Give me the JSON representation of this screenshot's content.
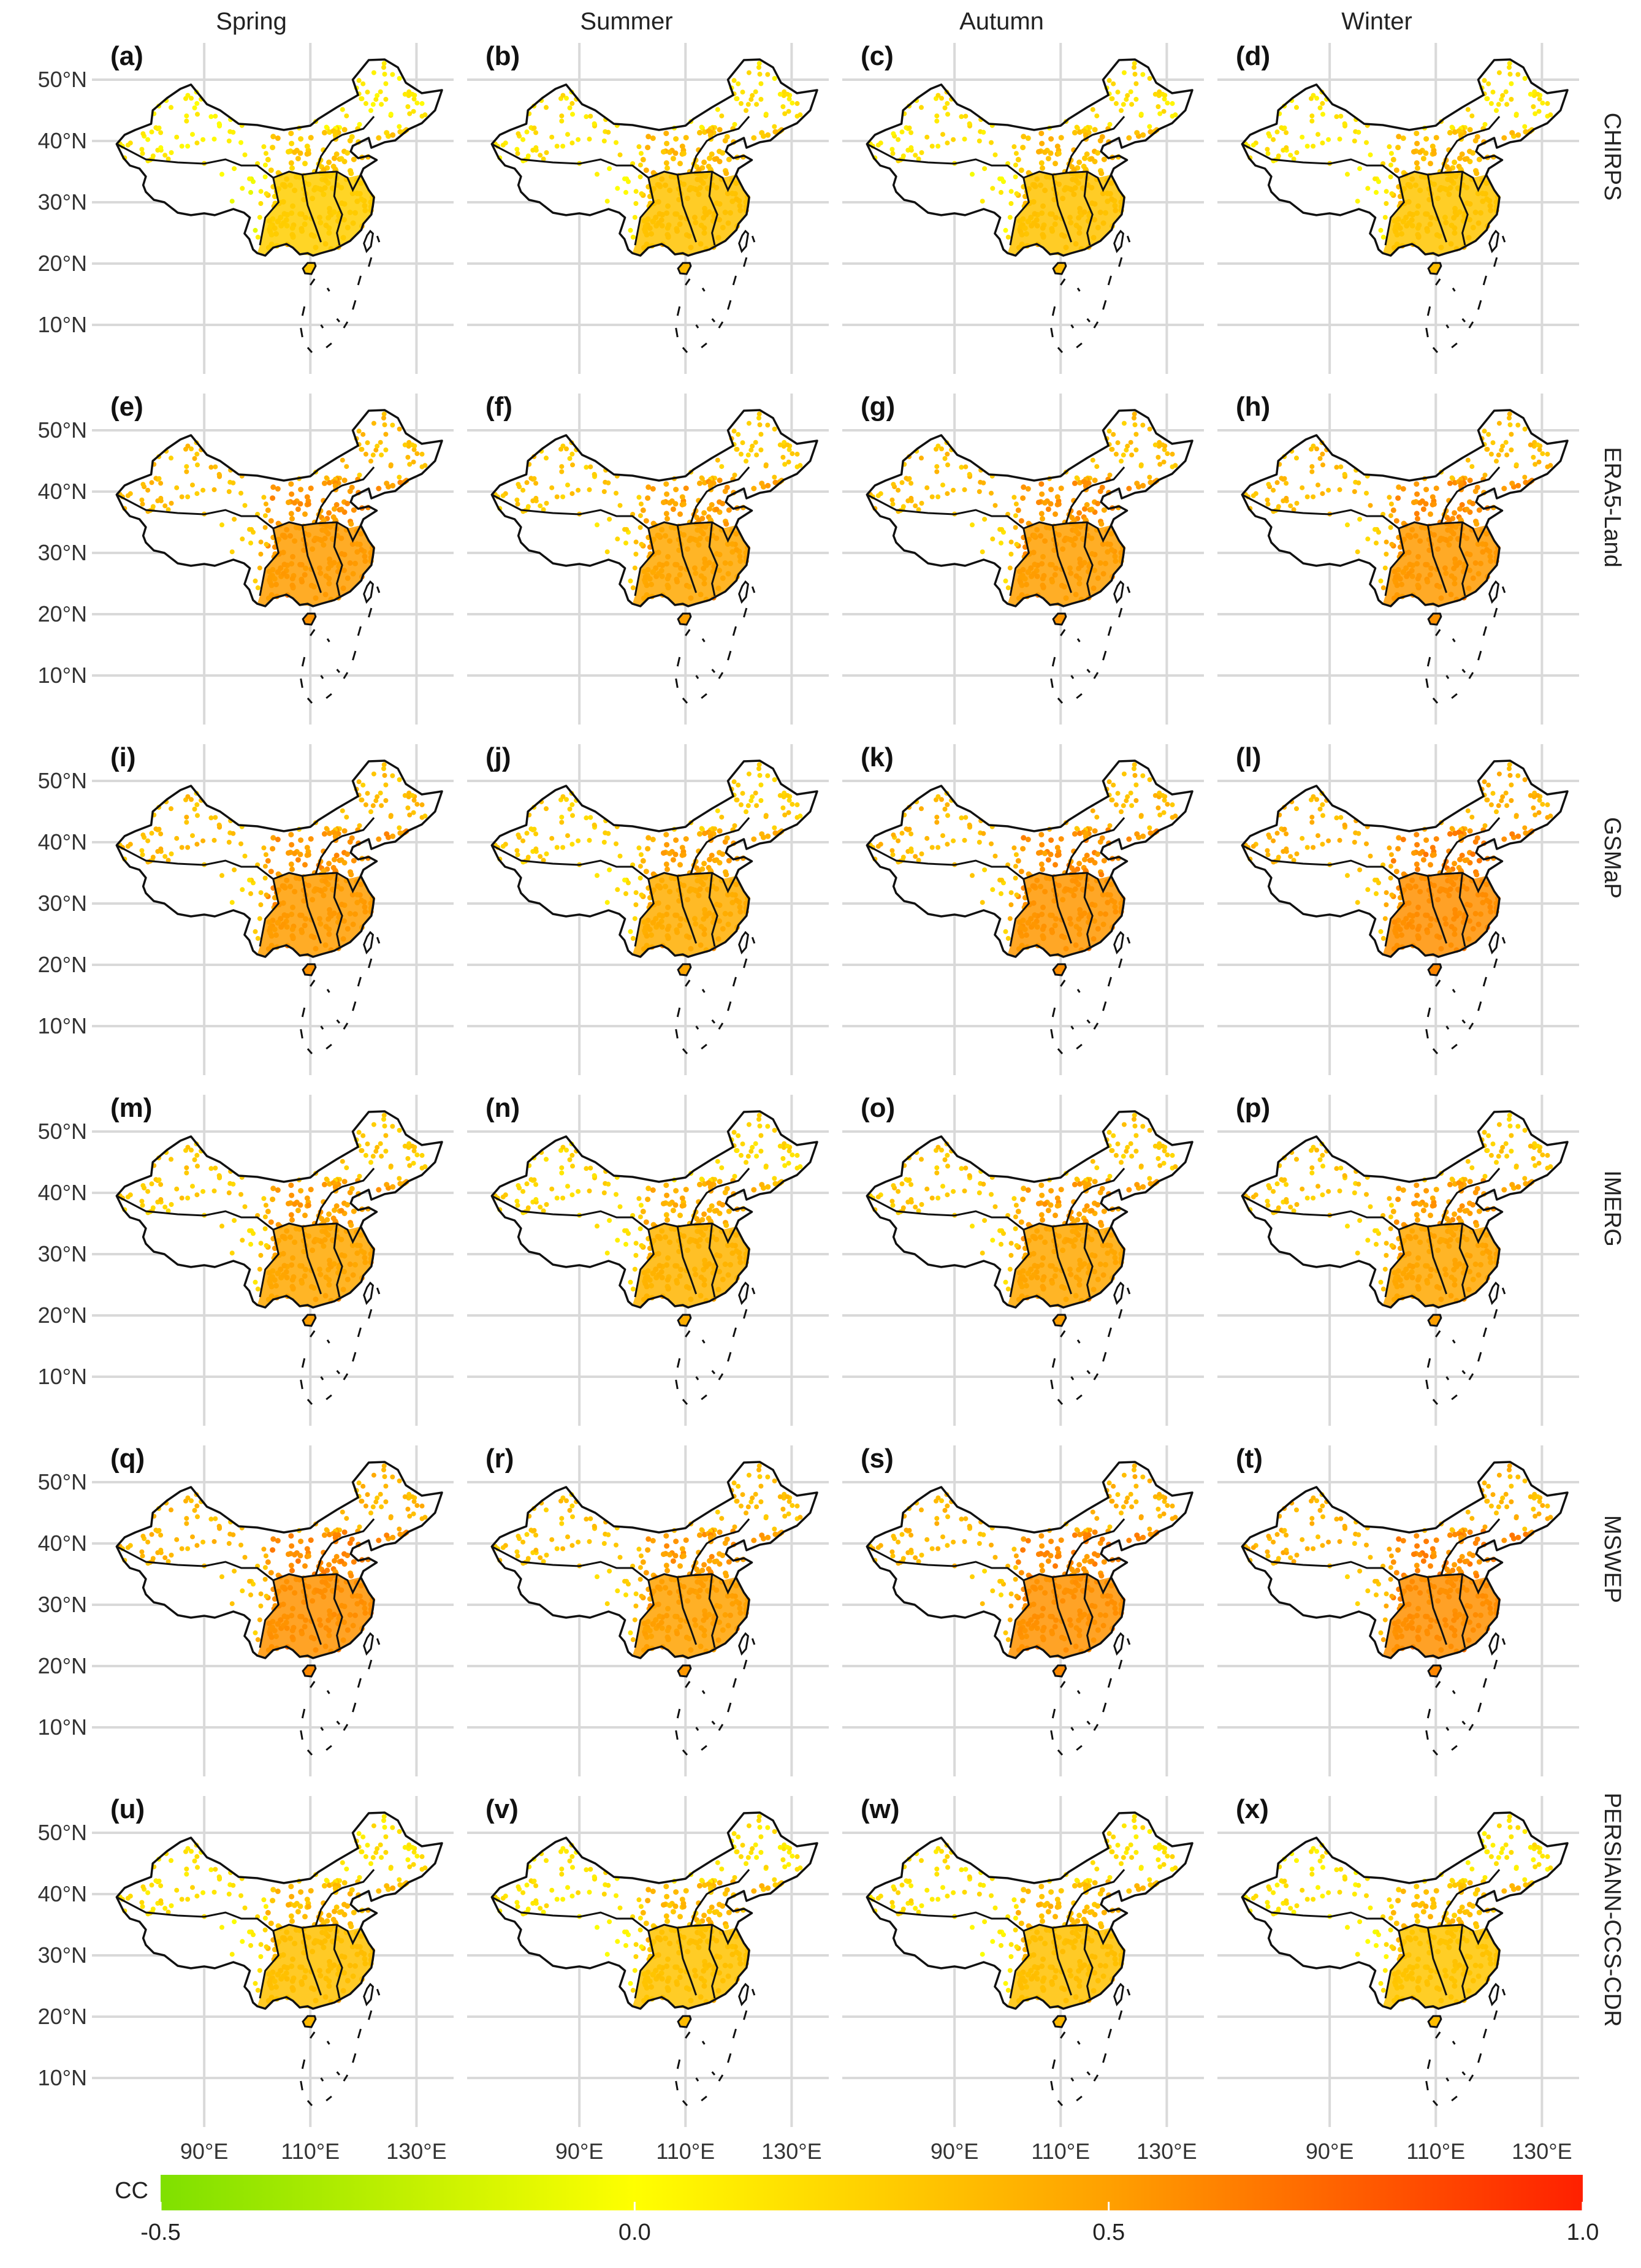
{
  "chart_data": {
    "type": "map-scatter-grid",
    "metric": "CC",
    "columns": [
      "Spring",
      "Summer",
      "Autumn",
      "Winter"
    ],
    "rows": [
      "CHIRPS",
      "ERA5-Land",
      "GSMaP",
      "IMERG",
      "MSWEP",
      "PERSIANN-CCS-CDR"
    ],
    "panel_labels": [
      "(a)",
      "(b)",
      "(c)",
      "(d)",
      "(e)",
      "(f)",
      "(g)",
      "(h)",
      "(i)",
      "(j)",
      "(k)",
      "(l)",
      "(m)",
      "(n)",
      "(o)",
      "(p)",
      "(q)",
      "(r)",
      "(s)",
      "(t)",
      "(u)",
      "(v)",
      "(w)",
      "(x)"
    ],
    "y_ticks": [
      {
        "value": 50,
        "label": "50°N"
      },
      {
        "value": 40,
        "label": "40°N"
      },
      {
        "value": 30,
        "label": "30°N"
      },
      {
        "value": 20,
        "label": "20°N"
      },
      {
        "value": 10,
        "label": "10°N"
      }
    ],
    "x_ticks": [
      {
        "value": 90,
        "label": "90°E"
      },
      {
        "value": 110,
        "label": "110°E"
      },
      {
        "value": 130,
        "label": "130°E"
      }
    ],
    "lon_range": [
      70,
      137
    ],
    "lat_range": [
      3,
      56
    ],
    "panel_mean_cc": [
      [
        0.2,
        0.26,
        0.26,
        0.25
      ],
      [
        0.45,
        0.4,
        0.44,
        0.46
      ],
      [
        0.45,
        0.37,
        0.47,
        0.5
      ],
      [
        0.4,
        0.33,
        0.4,
        0.4
      ],
      [
        0.49,
        0.43,
        0.49,
        0.5
      ],
      [
        0.27,
        0.26,
        0.27,
        0.25
      ]
    ],
    "colorbar": {
      "label": "CC",
      "min": -0.5,
      "max": 1.0,
      "ticks": [
        {
          "value": -0.5,
          "label": "-0.5"
        },
        {
          "value": 0.0,
          "label": "0.0"
        },
        {
          "value": 0.5,
          "label": "0.5"
        },
        {
          "value": 1.0,
          "label": "1.0"
        }
      ],
      "colors": [
        "#7fe000",
        "#ffff00",
        "#ffc000",
        "#ff8000",
        "#ff2000"
      ]
    }
  }
}
